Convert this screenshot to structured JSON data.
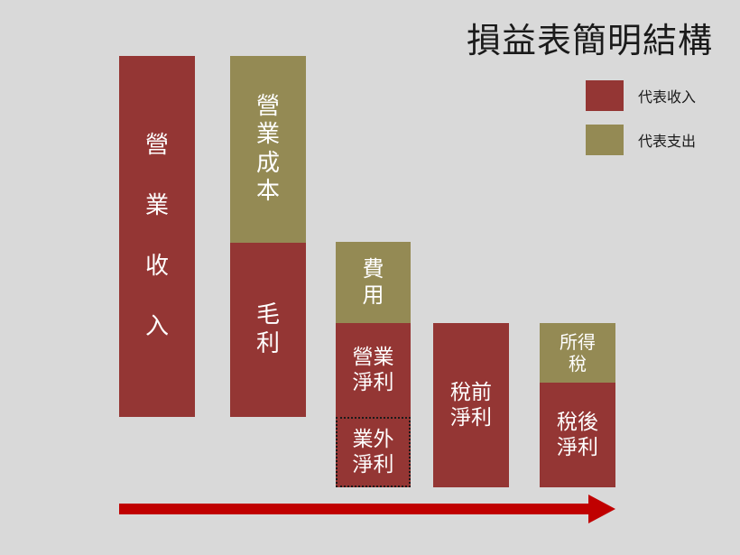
{
  "title": "損益表簡明結構",
  "legend": {
    "revenue": {
      "label": "代表收入",
      "color": "#943634"
    },
    "expense": {
      "label": "代表支出",
      "color": "#948a54"
    }
  },
  "blocks": {
    "operating_revenue": {
      "chars": [
        "營",
        "業",
        "收",
        "入"
      ],
      "type": "revenue"
    },
    "operating_cost": {
      "chars": [
        "營",
        "業",
        "成",
        "本"
      ],
      "type": "expense"
    },
    "gross_profit": {
      "chars": [
        "毛",
        "利"
      ],
      "type": "revenue"
    },
    "fees": {
      "chars": [
        "費",
        "用"
      ],
      "type": "expense"
    },
    "operating_net_profit": {
      "lines": [
        "營業",
        "淨利"
      ],
      "type": "revenue"
    },
    "non_operating_net_profit": {
      "lines": [
        "業外",
        "淨利"
      ],
      "type": "revenue"
    },
    "pretax_net_profit": {
      "lines": [
        "稅前",
        "淨利"
      ],
      "type": "revenue"
    },
    "income_tax": {
      "lines": [
        "所得",
        "稅"
      ],
      "type": "expense"
    },
    "aftertax_net_profit": {
      "lines": [
        "稅後",
        "淨利"
      ],
      "type": "revenue"
    }
  },
  "arrow": {
    "color": "#c00000"
  }
}
